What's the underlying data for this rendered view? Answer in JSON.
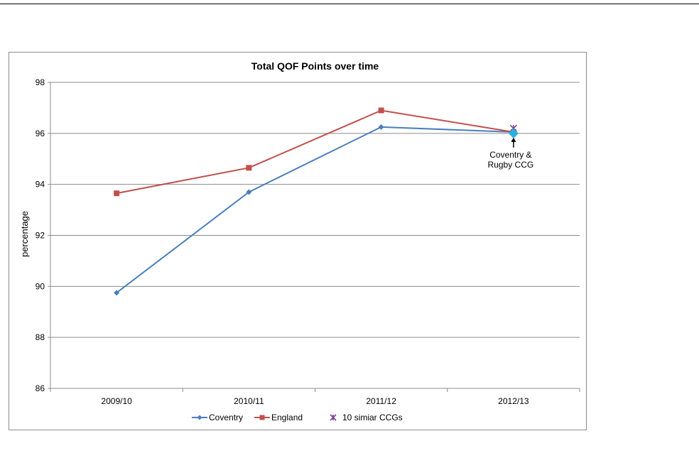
{
  "chart_data": {
    "type": "line",
    "title": "Total QOF Points over time",
    "xlabel": "",
    "ylabel": "percentage",
    "categories": [
      "2009/10",
      "2010/11",
      "2011/12",
      "2012/13"
    ],
    "ylim": [
      86,
      98
    ],
    "yticks": [
      "86",
      "88",
      "90",
      "92",
      "94",
      "96",
      "98"
    ],
    "grid": true,
    "legend_position": "bottom",
    "series": [
      {
        "name": "Coventry",
        "values": [
          89.75,
          93.7,
          96.25,
          96.05
        ],
        "color": "#4a7ebb",
        "marker": "diamond"
      },
      {
        "name": "England",
        "values": [
          93.65,
          94.65,
          96.9,
          96.05
        ],
        "color": "#c0504d",
        "marker": "square"
      },
      {
        "name": "10 simiar CCGs",
        "values": [
          null,
          null,
          null,
          96.2
        ],
        "color": "#7f3f98",
        "marker": "star"
      }
    ],
    "highlight": {
      "category": "2012/13",
      "value": 96.0,
      "color": "#2ab0e0"
    },
    "annotation": {
      "lines": [
        "Coventry &",
        "Rugby CCG"
      ],
      "category": "2012/13"
    }
  }
}
